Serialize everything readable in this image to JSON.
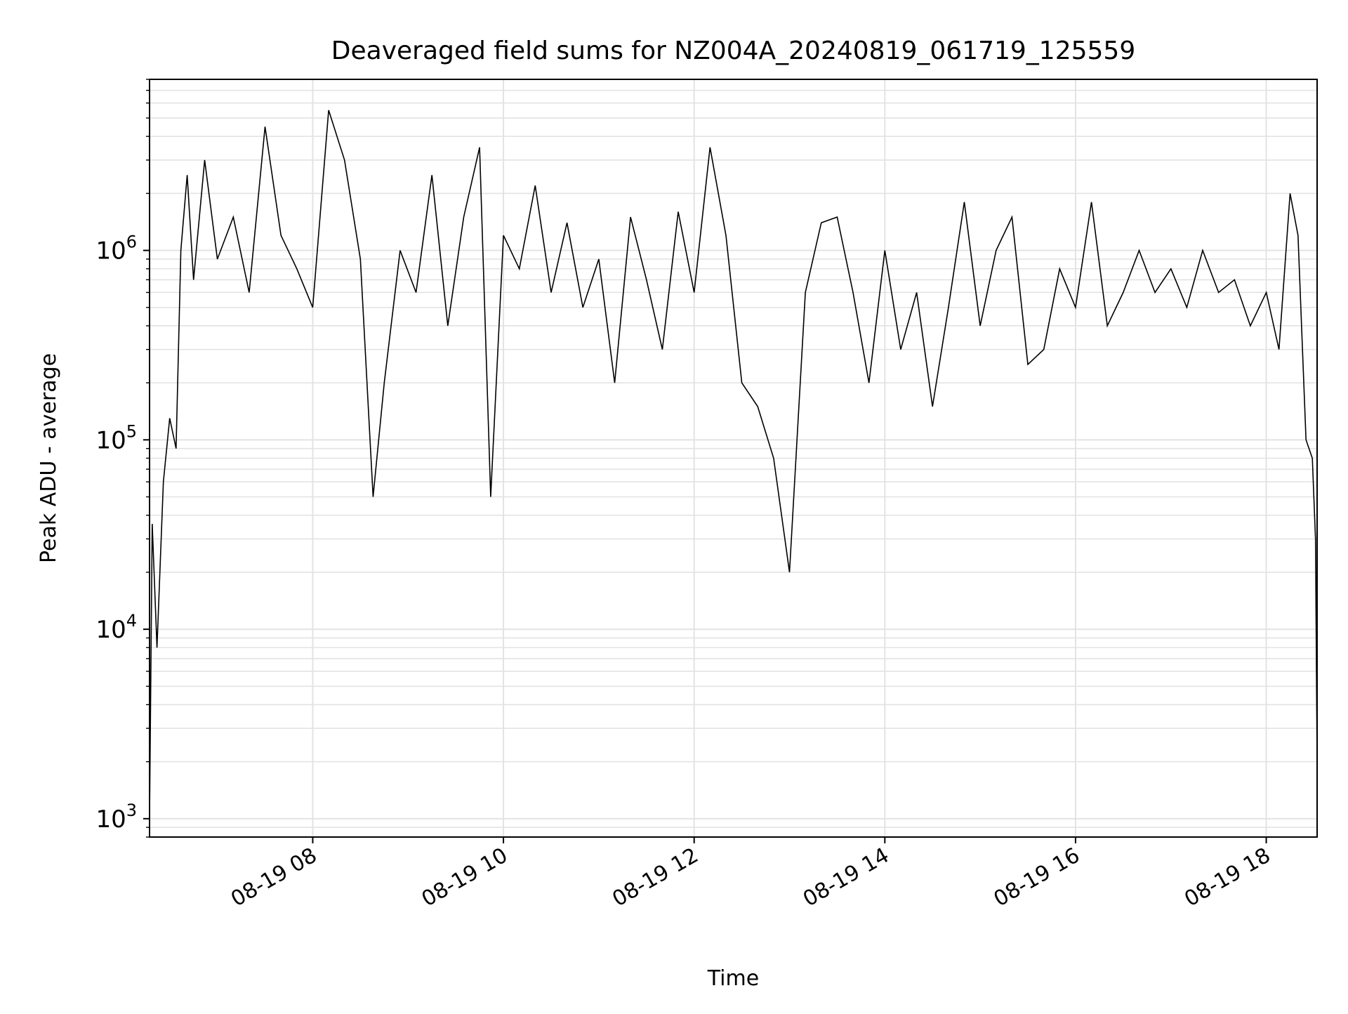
{
  "chart_data": {
    "type": "line",
    "title": "Deaveraged field sums for NZ004A_20240819_061719_125559",
    "xlabel": "Time",
    "ylabel": "Peak ADU - average",
    "yscale": "log",
    "ylim": [
      800,
      8000000
    ],
    "xlim": [
      "2024-08-19 06:17:19",
      "2024-08-19 18:32:00"
    ],
    "x_ticks": [
      {
        "t": "2024-08-19 08:00",
        "label": "08-19 08"
      },
      {
        "t": "2024-08-19 10:00",
        "label": "08-19 10"
      },
      {
        "t": "2024-08-19 12:00",
        "label": "08-19 12"
      },
      {
        "t": "2024-08-19 14:00",
        "label": "08-19 14"
      },
      {
        "t": "2024-08-19 16:00",
        "label": "08-19 16"
      },
      {
        "t": "2024-08-19 18:00",
        "label": "08-19 18"
      }
    ],
    "y_ticks": [
      {
        "v": 1000,
        "base": "10",
        "exp": "3"
      },
      {
        "v": 10000,
        "base": "10",
        "exp": "4"
      },
      {
        "v": 100000,
        "base": "10",
        "exp": "5"
      },
      {
        "v": 1000000,
        "base": "10",
        "exp": "6"
      }
    ],
    "grid": true,
    "line_color": "#000000",
    "series": [
      {
        "x": [
          "2024-08-19 06:17:19",
          "2024-08-19 06:19",
          "2024-08-19 06:22",
          "2024-08-19 06:26",
          "2024-08-19 06:30",
          "2024-08-19 06:34",
          "2024-08-19 06:37",
          "2024-08-19 06:41",
          "2024-08-19 06:45",
          "2024-08-19 06:52",
          "2024-08-19 07:00",
          "2024-08-19 07:10",
          "2024-08-19 07:20",
          "2024-08-19 07:30",
          "2024-08-19 07:40",
          "2024-08-19 07:50",
          "2024-08-19 08:00",
          "2024-08-19 08:10",
          "2024-08-19 08:20",
          "2024-08-19 08:30",
          "2024-08-19 08:38",
          "2024-08-19 08:45",
          "2024-08-19 08:55",
          "2024-08-19 09:05",
          "2024-08-19 09:15",
          "2024-08-19 09:25",
          "2024-08-19 09:35",
          "2024-08-19 09:45",
          "2024-08-19 09:52",
          "2024-08-19 10:00",
          "2024-08-19 10:10",
          "2024-08-19 10:20",
          "2024-08-19 10:30",
          "2024-08-19 10:40",
          "2024-08-19 10:50",
          "2024-08-19 11:00",
          "2024-08-19 11:10",
          "2024-08-19 11:20",
          "2024-08-19 11:30",
          "2024-08-19 11:40",
          "2024-08-19 11:50",
          "2024-08-19 12:00",
          "2024-08-19 12:10",
          "2024-08-19 12:20",
          "2024-08-19 12:30",
          "2024-08-19 12:40",
          "2024-08-19 12:50",
          "2024-08-19 13:00",
          "2024-08-19 13:10",
          "2024-08-19 13:20",
          "2024-08-19 13:30",
          "2024-08-19 13:40",
          "2024-08-19 13:50",
          "2024-08-19 14:00",
          "2024-08-19 14:10",
          "2024-08-19 14:20",
          "2024-08-19 14:30",
          "2024-08-19 14:40",
          "2024-08-19 14:50",
          "2024-08-19 15:00",
          "2024-08-19 15:10",
          "2024-08-19 15:20",
          "2024-08-19 15:30",
          "2024-08-19 15:40",
          "2024-08-19 15:50",
          "2024-08-19 16:00",
          "2024-08-19 16:10",
          "2024-08-19 16:20",
          "2024-08-19 16:30",
          "2024-08-19 16:40",
          "2024-08-19 16:50",
          "2024-08-19 17:00",
          "2024-08-19 17:10",
          "2024-08-19 17:20",
          "2024-08-19 17:30",
          "2024-08-19 17:40",
          "2024-08-19 17:50",
          "2024-08-19 18:00",
          "2024-08-19 18:08",
          "2024-08-19 18:15",
          "2024-08-19 18:20",
          "2024-08-19 18:25",
          "2024-08-19 18:29",
          "2024-08-19 18:31",
          "2024-08-19 18:32"
        ],
        "y": [
          1000,
          36000,
          8000,
          60000,
          130000,
          90000,
          1000000,
          2500000,
          700000,
          3000000,
          900000,
          1500000,
          600000,
          4500000,
          1200000,
          800000,
          500000,
          5500000,
          3000000,
          900000,
          50000,
          200000,
          1000000,
          600000,
          2500000,
          400000,
          1500000,
          3500000,
          50000,
          1200000,
          800000,
          2200000,
          600000,
          1400000,
          500000,
          900000,
          200000,
          1500000,
          700000,
          300000,
          1600000,
          600000,
          3500000,
          1200000,
          200000,
          150000,
          80000,
          20000,
          600000,
          1400000,
          1500000,
          600000,
          200000,
          1000000,
          300000,
          600000,
          150000,
          500000,
          1800000,
          400000,
          1000000,
          1500000,
          250000,
          300000,
          800000,
          500000,
          1800000,
          400000,
          600000,
          1000000,
          600000,
          800000,
          500000,
          1000000,
          600000,
          700000,
          400000,
          600000,
          300000,
          2000000,
          1200000,
          100000,
          80000,
          30000,
          2000
        ]
      }
    ]
  }
}
